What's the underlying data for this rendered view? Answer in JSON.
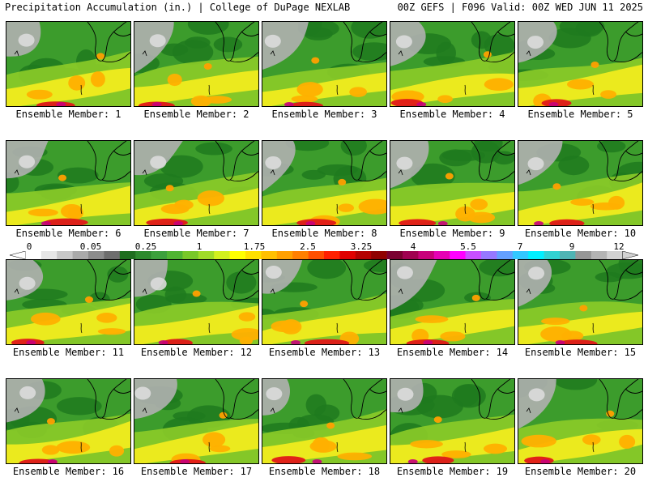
{
  "header": {
    "left": "Precipitation Accumulation (in.) | College of DuPage NEXLAB",
    "right": "00Z GEFS | F096 Valid: 00Z WED JUN 11 2025"
  },
  "colorbar": {
    "labels": [
      "0",
      "0.05",
      "0.25",
      "1",
      "1.75",
      "2.5",
      "3.25",
      "4",
      "5.5",
      "7",
      "9",
      "12"
    ],
    "colors": [
      "#ffffff",
      "#e6e6e6",
      "#c8c8c8",
      "#aaaaaa",
      "#8c8c8c",
      "#6e6e6e",
      "#1e6e1e",
      "#2d8a2d",
      "#3ca03c",
      "#50b432",
      "#78c828",
      "#a0dc28",
      "#d2f01e",
      "#ffff00",
      "#ffe000",
      "#ffc000",
      "#ffa000",
      "#ff7f00",
      "#ff5000",
      "#ff2000",
      "#e00000",
      "#b40000",
      "#900000",
      "#7a0030",
      "#a00050",
      "#c8007a",
      "#e600b4",
      "#ff00ff",
      "#c850ff",
      "#9678ff",
      "#64a0ff",
      "#32c8ff",
      "#00f0ff",
      "#32d2d2",
      "#50b4b4",
      "#969696",
      "#b4b4b4",
      "#d2d2d2"
    ]
  },
  "panels": [
    {
      "label": "Ensemble Member: 1"
    },
    {
      "label": "Ensemble Member: 2"
    },
    {
      "label": "Ensemble Member: 3"
    },
    {
      "label": "Ensemble Member: 4"
    },
    {
      "label": "Ensemble Member: 5"
    },
    {
      "label": "Ensemble Member: 6"
    },
    {
      "label": "Ensemble Member: 7"
    },
    {
      "label": "Ensemble Member: 8"
    },
    {
      "label": "Ensemble Member: 9"
    },
    {
      "label": "Ensemble Member: 10"
    },
    {
      "label": "Ensemble Member: 11"
    },
    {
      "label": "Ensemble Member: 12"
    },
    {
      "label": "Ensemble Member: 13"
    },
    {
      "label": "Ensemble Member: 14"
    },
    {
      "label": "Ensemble Member: 15"
    },
    {
      "label": "Ensemble Member: 16"
    },
    {
      "label": "Ensemble Member: 17"
    },
    {
      "label": "Ensemble Member: 18"
    },
    {
      "label": "Ensemble Member: 19"
    },
    {
      "label": "Ensemble Member: 20"
    }
  ]
}
